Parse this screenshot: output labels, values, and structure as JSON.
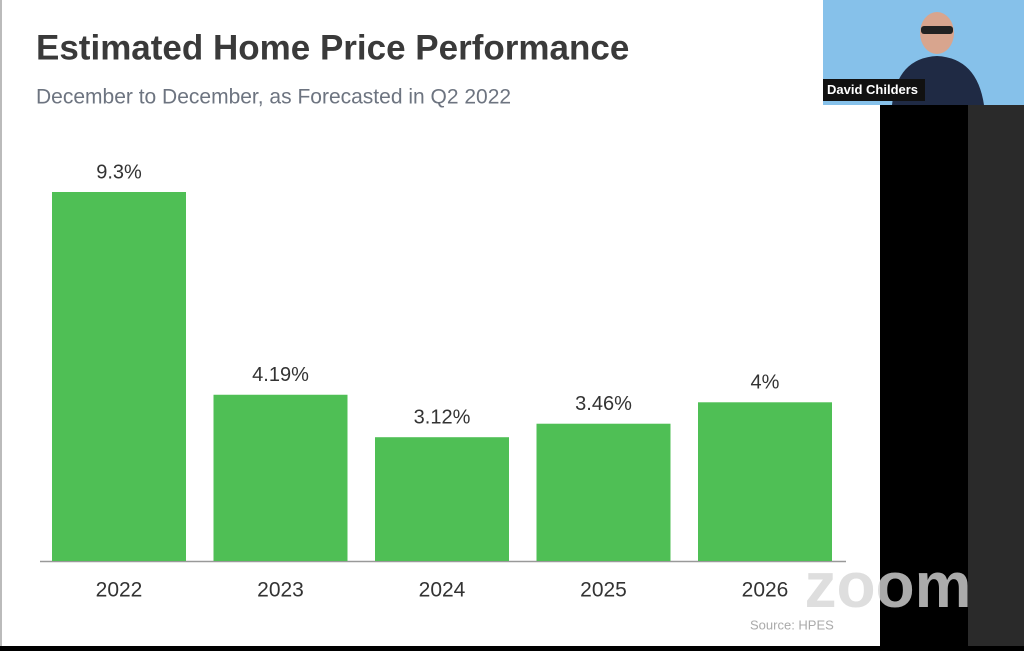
{
  "chart_data": {
    "type": "bar",
    "title": "Estimated Home Price Performance",
    "subtitle": "December to December, as Forecasted in Q2 2022",
    "categories": [
      "2022",
      "2023",
      "2024",
      "2025",
      "2026"
    ],
    "values": [
      9.3,
      4.19,
      3.12,
      3.46,
      4
    ],
    "value_labels": [
      "9.3%",
      "4.19%",
      "3.12%",
      "3.46%",
      "4%"
    ],
    "color": "#4fbf55",
    "source": "Source: HPES"
  },
  "participant": {
    "name": "David Childers"
  },
  "watermark": "zoom"
}
